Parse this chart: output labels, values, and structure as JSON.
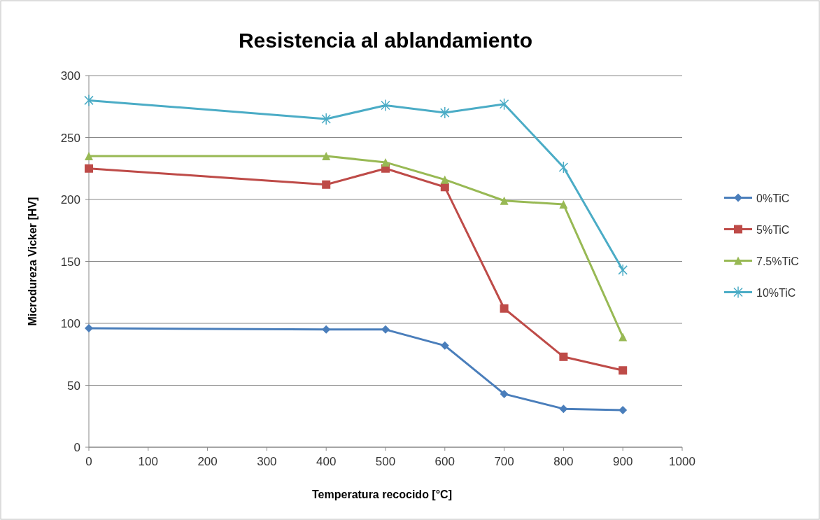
{
  "chart_data": {
    "type": "line",
    "title": "Resistencia al ablandamiento",
    "xlabel": "Temperatura recocido [°C]",
    "ylabel": "Microdureza Vicker [HV]",
    "x": [
      0,
      400,
      500,
      600,
      700,
      800,
      900
    ],
    "series": [
      {
        "name": "0%TiC",
        "color": "#4a7ebb",
        "marker": "diamond",
        "values": [
          96,
          95,
          95,
          82,
          43,
          31,
          30
        ]
      },
      {
        "name": "5%TiC",
        "color": "#be4b48",
        "marker": "square",
        "values": [
          225,
          212,
          225,
          210,
          112,
          73,
          62
        ]
      },
      {
        "name": "7.5%TiC",
        "color": "#98b954",
        "marker": "triangle",
        "values": [
          235,
          235,
          230,
          216,
          199,
          196,
          89
        ]
      },
      {
        "name": "10%TiC",
        "color": "#4bacc6",
        "marker": "cross",
        "values": [
          280,
          265,
          276,
          270,
          277,
          226,
          143
        ]
      }
    ],
    "xlim": [
      0,
      1000
    ],
    "xticks": [
      0,
      100,
      200,
      300,
      400,
      500,
      600,
      700,
      800,
      900,
      1000
    ],
    "ylim": [
      0,
      300
    ],
    "yticks": [
      0,
      50,
      100,
      150,
      200,
      250,
      300
    ],
    "grid": "y",
    "legend": "right",
    "line_style": "solid"
  }
}
